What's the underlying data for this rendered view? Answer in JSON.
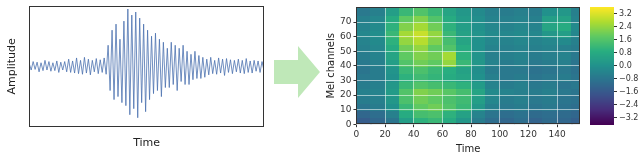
{
  "chart_data": [
    {
      "type": "line",
      "xlabel": "Time",
      "ylabel": "Amplitude",
      "color": "#4c72b0",
      "ylim": [
        -1,
        1
      ],
      "tick_labels": false,
      "values": [
        0.05,
        -0.06,
        0.08,
        -0.05,
        0.07,
        -0.09,
        0.06,
        -0.07,
        0.1,
        -0.06,
        0.08,
        -0.08,
        0.06,
        -0.07,
        0.09,
        -0.1,
        0.07,
        -0.06,
        0.08,
        -0.09,
        0.12,
        -0.1,
        0.09,
        -0.11,
        0.14,
        -0.12,
        0.1,
        -0.13,
        0.15,
        -0.11,
        0.12,
        -0.14,
        0.1,
        -0.09,
        0.13,
        -0.12,
        0.11,
        -0.1,
        0.14,
        -0.13,
        0.35,
        -0.4,
        0.6,
        -0.55,
        0.7,
        -0.5,
        0.45,
        -0.6,
        0.75,
        -0.65,
        0.95,
        -0.8,
        0.85,
        -0.7,
        0.9,
        -0.85,
        0.8,
        -0.6,
        0.7,
        -0.75,
        0.6,
        -0.55,
        0.5,
        -0.45,
        0.55,
        -0.4,
        0.45,
        -0.5,
        0.4,
        -0.35,
        0.3,
        -0.35,
        0.4,
        -0.3,
        0.35,
        -0.4,
        0.3,
        -0.25,
        0.35,
        -0.3,
        0.25,
        -0.3,
        0.2,
        -0.22,
        0.25,
        -0.2,
        0.18,
        -0.2,
        0.15,
        -0.18,
        0.12,
        -0.14,
        0.15,
        -0.12,
        0.1,
        -0.13,
        0.14,
        -0.11,
        0.12,
        -0.15,
        0.13,
        -0.1,
        0.11,
        -0.12,
        0.1,
        -0.09,
        0.12,
        -0.11,
        0.1,
        -0.12,
        0.13,
        -0.1,
        0.09,
        -0.11,
        0.1,
        -0.08,
        0.09,
        -0.1,
        0.08,
        -0.07
      ]
    },
    {
      "type": "heatmap",
      "xlabel": "Time",
      "ylabel": "Mel channels",
      "grid": true,
      "xlim": [
        0,
        156
      ],
      "ylim": [
        0,
        80
      ],
      "xticks": [
        0,
        20,
        40,
        60,
        80,
        100,
        120,
        140
      ],
      "yticks": [
        0,
        10,
        20,
        30,
        40,
        50,
        60,
        70
      ],
      "x_bins": [
        0,
        10,
        20,
        30,
        40,
        50,
        60,
        70,
        80,
        90,
        100,
        110,
        120,
        130,
        140,
        150,
        156
      ],
      "y_bins": [
        0,
        5,
        10,
        15,
        20,
        25,
        30,
        35,
        40,
        45,
        50,
        55,
        60,
        65,
        70,
        75,
        80
      ],
      "cells": [
        [
          -1.5,
          -1.2,
          -0.8,
          0.4,
          1.0,
          1.2,
          0.8,
          0.2,
          -0.6,
          -1.0,
          -1.2,
          -1.0,
          -1.3,
          -1.1,
          -1.2,
          -1.4
        ],
        [
          -1.2,
          -1.0,
          -0.5,
          0.8,
          1.4,
          1.5,
          1.0,
          0.5,
          -0.4,
          -0.8,
          -1.0,
          -0.9,
          -1.1,
          -1.0,
          -1.1,
          -1.2
        ],
        [
          -0.8,
          -0.6,
          0.0,
          1.2,
          1.8,
          2.0,
          1.6,
          1.2,
          0.2,
          -0.5,
          -0.7,
          -0.6,
          -0.8,
          -0.7,
          -0.9,
          -1.0
        ],
        [
          -0.6,
          -0.5,
          0.2,
          1.5,
          2.0,
          1.8,
          1.5,
          1.3,
          0.4,
          -0.3,
          -0.6,
          -0.5,
          -0.7,
          -0.6,
          -0.8,
          -0.9
        ],
        [
          -0.5,
          -0.4,
          0.3,
          1.6,
          2.2,
          2.0,
          1.7,
          1.4,
          0.6,
          -0.2,
          -0.4,
          -0.5,
          -0.6,
          -0.5,
          -0.7,
          -0.8
        ],
        [
          -0.6,
          -0.5,
          0.2,
          1.2,
          1.6,
          1.4,
          1.2,
          1.0,
          0.3,
          -0.4,
          -0.6,
          -0.5,
          -0.7,
          -0.6,
          -0.8,
          -0.7
        ],
        [
          -0.7,
          -0.6,
          0.0,
          1.0,
          1.3,
          1.1,
          0.8,
          0.6,
          0.0,
          -0.5,
          -0.7,
          -0.6,
          -0.8,
          -0.7,
          -0.6,
          -0.8
        ],
        [
          -0.8,
          -0.6,
          0.1,
          1.2,
          1.5,
          1.2,
          0.9,
          0.5,
          -0.1,
          -0.6,
          -0.7,
          -0.7,
          -0.9,
          -0.8,
          -0.7,
          -0.9
        ],
        [
          -0.7,
          -0.5,
          0.4,
          1.6,
          2.0,
          1.8,
          2.4,
          1.2,
          0.2,
          -0.4,
          -0.6,
          -0.5,
          -0.7,
          -0.6,
          -0.5,
          -0.8
        ],
        [
          -0.6,
          -0.4,
          0.6,
          1.8,
          2.2,
          2.0,
          2.6,
          1.0,
          0.1,
          -0.5,
          -0.5,
          -0.4,
          -0.6,
          -0.5,
          -0.4,
          -0.7
        ],
        [
          -0.5,
          -0.3,
          0.8,
          2.0,
          2.4,
          1.8,
          1.6,
          0.8,
          0.0,
          -0.4,
          -0.5,
          -0.4,
          -0.5,
          -0.4,
          -0.5,
          -0.6
        ],
        [
          -0.4,
          -0.2,
          1.0,
          2.4,
          2.8,
          2.2,
          1.4,
          0.6,
          0.0,
          -0.3,
          -0.4,
          -0.3,
          -0.4,
          -0.3,
          -0.2,
          -0.5
        ],
        [
          -0.3,
          -0.1,
          1.2,
          2.6,
          3.0,
          2.4,
          1.2,
          0.5,
          0.1,
          -0.2,
          -0.3,
          -0.2,
          -0.3,
          0.2,
          0.4,
          -0.3
        ],
        [
          -0.4,
          -0.2,
          1.0,
          2.2,
          2.6,
          2.0,
          1.0,
          0.4,
          0.0,
          -0.3,
          -0.4,
          -0.3,
          -0.4,
          0.6,
          0.8,
          -0.2
        ],
        [
          -0.5,
          -0.3,
          0.8,
          1.8,
          2.2,
          1.6,
          0.8,
          0.3,
          -0.1,
          -0.4,
          -0.5,
          -0.4,
          -0.5,
          0.4,
          0.5,
          -0.4
        ],
        [
          -0.7,
          -0.5,
          0.4,
          1.2,
          1.6,
          1.2,
          0.6,
          0.2,
          -0.2,
          -0.5,
          -0.6,
          -0.5,
          -0.6,
          0.0,
          0.2,
          -0.5
        ]
      ],
      "colorbar": {
        "range": [
          -3.6,
          3.6
        ],
        "ticks": [
          {
            "value": -3.2,
            "label": "−3.2"
          },
          {
            "value": -2.4,
            "label": "−2.4"
          },
          {
            "value": -1.6,
            "label": "−1.6"
          },
          {
            "value": -0.8,
            "label": "−0.8"
          },
          {
            "value": 0,
            "label": "0.0"
          },
          0.8,
          1.6,
          2.4,
          3.2
        ]
      }
    }
  ]
}
